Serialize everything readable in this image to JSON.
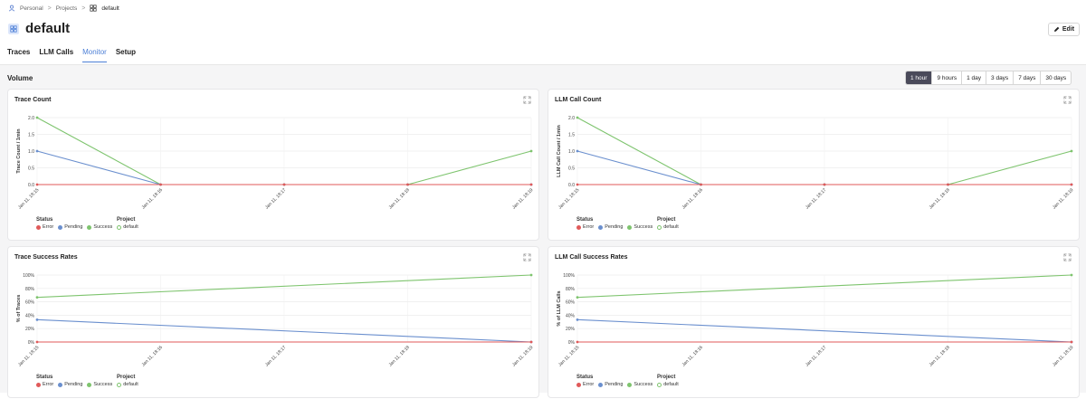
{
  "breadcrumb": {
    "items": [
      "Personal",
      "Projects",
      "default"
    ],
    "separator": ">"
  },
  "page": {
    "title": "default",
    "edit_label": "Edit"
  },
  "tabs": [
    {
      "label": "Traces",
      "active": false
    },
    {
      "label": "LLM Calls",
      "active": false
    },
    {
      "label": "Monitor",
      "active": true
    },
    {
      "label": "Setup",
      "active": false
    }
  ],
  "section": {
    "label": "Volume"
  },
  "time_ranges": {
    "options": [
      "1 hour",
      "9 hours",
      "1 day",
      "3 days",
      "7 days",
      "30 days"
    ],
    "selected": "1 hour"
  },
  "colors": {
    "error": "#e05a5a",
    "pending": "#6a8fce",
    "success": "#7ec46e",
    "accent": "#4c7fd6"
  },
  "legend": {
    "status_heading": "Status",
    "project_heading": "Project",
    "statuses": [
      "Error",
      "Pending",
      "Success"
    ],
    "project": "default"
  },
  "icons": {
    "crumb": "user-icon",
    "project": "grid-icon",
    "edit": "pencil-icon",
    "expand": "expand-icon"
  },
  "chart_data": [
    {
      "title": "Trace Count",
      "type": "line",
      "ylabel": "Trace Count / 1min",
      "x": [
        "Jan 11, 18:15",
        "Jan 11, 18:16",
        "Jan 11, 18:17",
        "Jan 11, 18:18",
        "Jan 11, 18:19"
      ],
      "yticks": [
        "0.0",
        "0.5",
        "1.0",
        "1.5",
        "2.0"
      ],
      "ylim": [
        0,
        2
      ],
      "series": [
        {
          "name": "Error",
          "values": [
            0,
            0,
            0,
            0,
            0
          ]
        },
        {
          "name": "Pending",
          "values": [
            1,
            0,
            0,
            0,
            0
          ]
        },
        {
          "name": "Success",
          "values": [
            2,
            0,
            0,
            0,
            1
          ]
        }
      ]
    },
    {
      "title": "LLM Call Count",
      "type": "line",
      "ylabel": "LLM Call Count / 1min",
      "x": [
        "Jan 11, 18:15",
        "Jan 11, 18:16",
        "Jan 11, 18:17",
        "Jan 11, 18:18",
        "Jan 11, 18:19"
      ],
      "yticks": [
        "0.0",
        "0.5",
        "1.0",
        "1.5",
        "2.0"
      ],
      "ylim": [
        0,
        2
      ],
      "series": [
        {
          "name": "Error",
          "values": [
            0,
            0,
            0,
            0,
            0
          ]
        },
        {
          "name": "Pending",
          "values": [
            1,
            0,
            0,
            0,
            0
          ]
        },
        {
          "name": "Success",
          "values": [
            2,
            0,
            0,
            0,
            1
          ]
        }
      ]
    },
    {
      "title": "Trace Success Rates",
      "type": "line",
      "ylabel": "% of Traces",
      "x": [
        "Jan 11, 18:15",
        "Jan 11, 18:16",
        "Jan 11, 18:17",
        "Jan 11, 18:18",
        "Jan 11, 18:19"
      ],
      "yticks": [
        "0%",
        "20%",
        "40%",
        "60%",
        "80%",
        "100%"
      ],
      "ylim": [
        0,
        100
      ],
      "series": [
        {
          "name": "Error",
          "x": [
            "Jan 11, 18:15",
            "Jan 11, 18:19"
          ],
          "values": [
            0,
            0
          ]
        },
        {
          "name": "Pending",
          "x": [
            "Jan 11, 18:15",
            "Jan 11, 18:19"
          ],
          "values": [
            33.3,
            0
          ]
        },
        {
          "name": "Success",
          "x": [
            "Jan 11, 18:15",
            "Jan 11, 18:19"
          ],
          "values": [
            66.7,
            100
          ]
        }
      ]
    },
    {
      "title": "LLM Call Success Rates",
      "type": "line",
      "ylabel": "% of LLM Calls",
      "x": [
        "Jan 11, 18:15",
        "Jan 11, 18:16",
        "Jan 11, 18:17",
        "Jan 11, 18:18",
        "Jan 11, 18:19"
      ],
      "yticks": [
        "0%",
        "20%",
        "40%",
        "60%",
        "80%",
        "100%"
      ],
      "ylim": [
        0,
        100
      ],
      "series": [
        {
          "name": "Error",
          "x": [
            "Jan 11, 18:15",
            "Jan 11, 18:19"
          ],
          "values": [
            0,
            0
          ]
        },
        {
          "name": "Pending",
          "x": [
            "Jan 11, 18:15",
            "Jan 11, 18:19"
          ],
          "values": [
            33.3,
            0
          ]
        },
        {
          "name": "Success",
          "x": [
            "Jan 11, 18:15",
            "Jan 11, 18:19"
          ],
          "values": [
            66.7,
            100
          ]
        }
      ]
    }
  ]
}
